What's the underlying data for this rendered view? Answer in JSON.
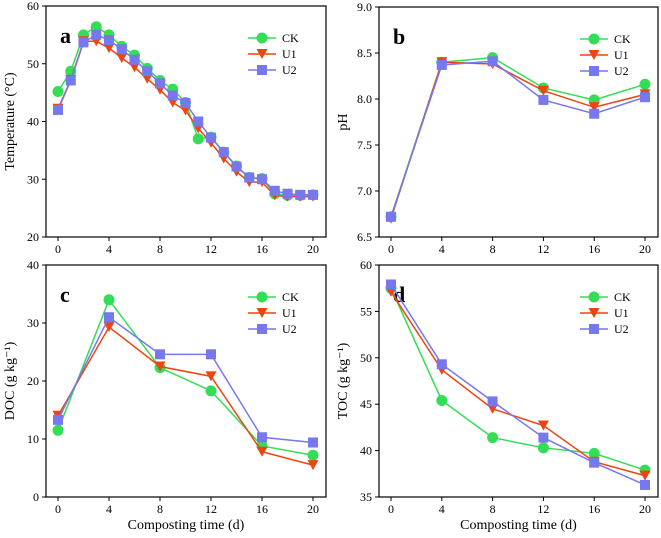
{
  "colors": {
    "CK": "#33dd55",
    "U1": "#ee4411",
    "U2": "#7777ee"
  },
  "chart_data": [
    {
      "type": "line",
      "panel_label": "a",
      "ylabel": "Temperature (°C)",
      "xlabel": "",
      "ylim": [
        20,
        60
      ],
      "yticks": [
        20,
        30,
        40,
        50,
        60
      ],
      "xlim": [
        0,
        20
      ],
      "xticks": [
        0,
        4,
        8,
        12,
        16,
        20
      ],
      "legend": "top-right",
      "x": [
        0,
        1,
        2,
        3,
        4,
        5,
        6,
        7,
        8,
        9,
        10,
        11,
        12,
        13,
        14,
        15,
        16,
        17,
        18,
        19,
        20
      ],
      "series": [
        {
          "name": "CK",
          "marker": "circle",
          "values": [
            45.2,
            48.7,
            55,
            56.4,
            55,
            53,
            51.5,
            49.2,
            47.1,
            45.6,
            43.3,
            37,
            37.3,
            34.7,
            32.3,
            30.3,
            30.1,
            27.5,
            27.2,
            27.2,
            27.3
          ]
        },
        {
          "name": "U1",
          "marker": "triangle-down",
          "values": [
            42.2,
            47.2,
            53.9,
            53.9,
            52.7,
            51,
            49.4,
            47.4,
            45.5,
            43.3,
            41.9,
            38.8,
            36.3,
            33.6,
            31.3,
            29.5,
            29.5,
            27.2,
            27,
            27,
            27
          ]
        },
        {
          "name": "U2",
          "marker": "square",
          "values": [
            42,
            47.1,
            53.7,
            55,
            54.1,
            52.5,
            50.7,
            48.7,
            46.6,
            44.5,
            43.2,
            40,
            37.2,
            34.7,
            32.2,
            30.3,
            30,
            28,
            27.5,
            27.3,
            27.3
          ]
        }
      ]
    },
    {
      "type": "line",
      "panel_label": "b",
      "ylabel": "pH",
      "xlabel": "",
      "ylim": [
        6.5,
        9.0
      ],
      "yticks": [
        "6.5",
        "7.0",
        "7.5",
        "8.0",
        "8.5",
        "9.0"
      ],
      "xlim": [
        0,
        20
      ],
      "xticks": [
        0,
        4,
        8,
        12,
        16,
        20
      ],
      "legend": "top-right",
      "x": [
        0,
        4,
        8,
        12,
        16,
        20
      ],
      "series": [
        {
          "name": "CK",
          "marker": "circle",
          "values": [
            6.72,
            8.4,
            8.45,
            8.12,
            7.99,
            8.16
          ]
        },
        {
          "name": "U1",
          "marker": "triangle-down",
          "values": [
            6.7,
            8.4,
            8.38,
            8.09,
            7.91,
            8.05
          ]
        },
        {
          "name": "U2",
          "marker": "square",
          "values": [
            6.72,
            8.37,
            8.41,
            7.99,
            7.84,
            8.02
          ]
        }
      ]
    },
    {
      "type": "line",
      "panel_label": "c",
      "ylabel": "DOC (g kg⁻¹)",
      "xlabel": "Composting time (d)",
      "ylim": [
        0,
        40
      ],
      "yticks": [
        0,
        10,
        20,
        30,
        40
      ],
      "xlim": [
        0,
        20
      ],
      "xticks": [
        0,
        4,
        8,
        12,
        16,
        20
      ],
      "legend": "top-right",
      "x": [
        0,
        4,
        8,
        12,
        16,
        20
      ],
      "series": [
        {
          "name": "CK",
          "marker": "circle",
          "values": [
            11.5,
            34,
            22.3,
            18.3,
            8.8,
            7.2
          ]
        },
        {
          "name": "U1",
          "marker": "triangle-down",
          "values": [
            14,
            29.3,
            22.5,
            20.8,
            7.8,
            5.5
          ]
        },
        {
          "name": "U2",
          "marker": "square",
          "values": [
            13.3,
            31,
            24.6,
            24.6,
            10.3,
            9.4
          ]
        }
      ]
    },
    {
      "type": "line",
      "panel_label": "d",
      "ylabel": "TOC (g kg⁻¹)",
      "xlabel": "Composting time (d)",
      "ylim": [
        35,
        60
      ],
      "yticks": [
        35,
        40,
        45,
        50,
        55,
        60
      ],
      "xlim": [
        0,
        20
      ],
      "xticks": [
        0,
        4,
        8,
        12,
        16,
        20
      ],
      "legend": "top-right",
      "x": [
        0,
        4,
        8,
        12,
        16,
        20
      ],
      "series": [
        {
          "name": "CK",
          "marker": "circle",
          "values": [
            57.5,
            45.4,
            41.4,
            40.3,
            39.7,
            37.9
          ]
        },
        {
          "name": "U1",
          "marker": "triangle-down",
          "values": [
            57.1,
            48.7,
            44.5,
            42.7,
            38.8,
            37.3
          ]
        },
        {
          "name": "U2",
          "marker": "square",
          "values": [
            57.9,
            49.3,
            45.3,
            41.4,
            38.7,
            36.3
          ]
        }
      ]
    }
  ]
}
